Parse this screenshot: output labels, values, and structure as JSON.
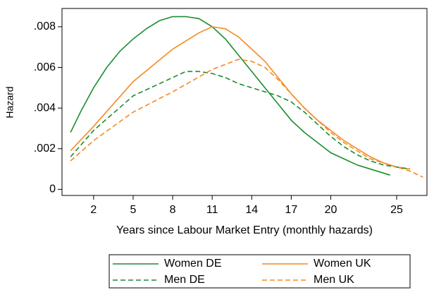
{
  "chart_data": {
    "type": "line",
    "x_label": "Years since Labour Market Entry (monthly hazards)",
    "y_label": "Hazard",
    "xlim": [
      -0.4,
      27.3
    ],
    "ylim": [
      -0.0003,
      0.0089
    ],
    "xticks": [
      2,
      5,
      8,
      11,
      14,
      17,
      20,
      25
    ],
    "yticks": [
      0,
      {
        "value": 0.002,
        "label": ".002"
      },
      {
        "value": 0.004,
        "label": ".004"
      },
      {
        "value": 0.006,
        "label": ".006"
      },
      {
        "value": 0.008,
        "label": ".008"
      }
    ],
    "series": [
      {
        "name": "Women DE",
        "color": "#1e8c2e",
        "dash": false,
        "x": [
          0.25,
          1,
          2,
          3,
          4,
          5,
          6,
          7,
          8,
          9,
          10,
          11,
          12,
          13,
          14,
          15,
          16,
          17,
          18,
          19,
          20,
          21,
          22,
          23,
          24,
          24.5
        ],
        "values": [
          0.0028,
          0.0038,
          0.005,
          0.006,
          0.0068,
          0.0074,
          0.0079,
          0.0083,
          0.0085,
          0.0085,
          0.0084,
          0.008,
          0.0074,
          0.0066,
          0.0058,
          0.005,
          0.0042,
          0.0034,
          0.0028,
          0.0023,
          0.0018,
          0.0015,
          0.0012,
          0.001,
          0.0008,
          0.0007
        ]
      },
      {
        "name": "Women UK",
        "color": "#f58a1f",
        "dash": false,
        "x": [
          0.25,
          2,
          5,
          8,
          10,
          11,
          12,
          13,
          14,
          15,
          16,
          17,
          18,
          19,
          20,
          21,
          22,
          23,
          24,
          25,
          26
        ],
        "values": [
          0.0019,
          0.0031,
          0.0053,
          0.0069,
          0.0077,
          0.008,
          0.0079,
          0.0075,
          0.0069,
          0.0063,
          0.0055,
          0.0047,
          0.004,
          0.0034,
          0.0029,
          0.0024,
          0.002,
          0.0016,
          0.0013,
          0.0011,
          0.001
        ]
      },
      {
        "name": "Men DE",
        "color": "#1e8c2e",
        "dash": true,
        "x": [
          0.25,
          2,
          5,
          8,
          9,
          10,
          11,
          12,
          13,
          14,
          15,
          16,
          17,
          18,
          19,
          20,
          21,
          22,
          23,
          24,
          25,
          26
        ],
        "values": [
          0.0016,
          0.0029,
          0.0046,
          0.0055,
          0.0058,
          0.0058,
          0.0057,
          0.0055,
          0.0052,
          0.005,
          0.0048,
          0.0046,
          0.0043,
          0.0038,
          0.0032,
          0.0026,
          0.0021,
          0.0017,
          0.0014,
          0.0012,
          0.0011,
          0.001
        ]
      },
      {
        "name": "Men UK",
        "color": "#f58a1f",
        "dash": true,
        "x": [
          0.25,
          2,
          5,
          8,
          11,
          13,
          14,
          15,
          16,
          17,
          18,
          19,
          20,
          21,
          22,
          23,
          24,
          25,
          26,
          27
        ],
        "values": [
          0.0014,
          0.0024,
          0.0038,
          0.0048,
          0.0059,
          0.0064,
          0.0063,
          0.006,
          0.0054,
          0.0047,
          0.004,
          0.0034,
          0.0028,
          0.0023,
          0.0019,
          0.0015,
          0.0013,
          0.0011,
          0.0009,
          0.0006
        ]
      }
    ]
  }
}
